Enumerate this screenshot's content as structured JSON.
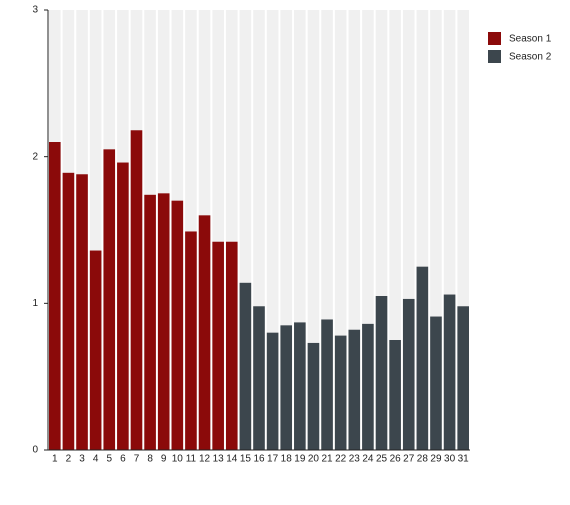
{
  "chart_data": {
    "type": "bar",
    "categories": [
      "1",
      "2",
      "3",
      "4",
      "5",
      "6",
      "7",
      "8",
      "9",
      "10",
      "11",
      "12",
      "13",
      "14",
      "15",
      "16",
      "17",
      "18",
      "19",
      "20",
      "21",
      "22",
      "23",
      "24",
      "25",
      "26",
      "27",
      "28",
      "29",
      "30",
      "31"
    ],
    "series": [
      {
        "name": "Season 1",
        "color": "#8b0a0a",
        "values": [
          2.1,
          1.89,
          1.88,
          1.36,
          2.05,
          1.96,
          2.18,
          1.74,
          1.75,
          1.7,
          1.49,
          1.6,
          1.42,
          1.42,
          null,
          null,
          null,
          null,
          null,
          null,
          null,
          null,
          null,
          null,
          null,
          null,
          null,
          null,
          null,
          null,
          null
        ]
      },
      {
        "name": "Season 2",
        "color": "#3c464d",
        "values": [
          null,
          null,
          null,
          null,
          null,
          null,
          null,
          null,
          null,
          null,
          null,
          null,
          null,
          null,
          1.14,
          0.98,
          0.8,
          0.85,
          0.87,
          0.73,
          0.89,
          0.78,
          0.82,
          0.86,
          1.05,
          0.75,
          1.03,
          1.25,
          0.91,
          1.06,
          0.98
        ]
      }
    ],
    "ylim": [
      0,
      3
    ],
    "yticks": [
      0,
      1,
      2,
      3
    ],
    "legend": "top-right"
  }
}
